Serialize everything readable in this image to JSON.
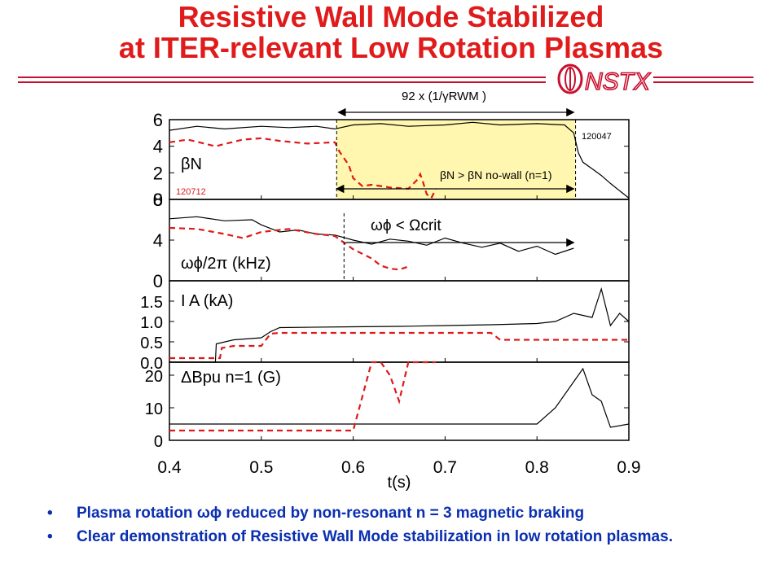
{
  "title": {
    "line1": "Resistive Wall Mode Stabilized",
    "line2": "at ITER-relevant Low Rotation Plasmas"
  },
  "logo": {
    "text": "NSTX"
  },
  "colors": {
    "title": "#e01b1b",
    "bullets": "#0b2fb0",
    "shot_120047": "#000000",
    "shot_120712": "#dd1a1a",
    "highlight": "#fff7b0",
    "logo": "#c8102e"
  },
  "bullets": [
    "Plasma rotation ωϕ reduced by non-resonant n = 3 magnetic braking",
    "Clear demonstration of Resistive Wall Mode stabilization in low rotation plasmas."
  ],
  "chart_data": {
    "type": "line",
    "xlabel": "t(s)",
    "xlim": [
      0.4,
      0.9
    ],
    "xticks": [
      "0.4",
      "0.5",
      "0.6",
      "0.7",
      "0.8",
      "0.9"
    ],
    "shots": [
      "120047",
      "120712"
    ],
    "annotations": {
      "top_arrow": "92 x (1/γRWM )",
      "top_arrow_t": [
        0.582,
        0.842
      ],
      "beta_condition": "βN > βN no-wall (n=1)",
      "beta_arrow_t": [
        0.58,
        0.842
      ],
      "rotation_condition": "ωϕ < Ωcrit",
      "rotation_arrow_t": [
        0.59,
        0.842
      ],
      "shaded_t": [
        0.582,
        0.842
      ]
    },
    "panels": [
      {
        "label": "βN",
        "ylim": [
          0,
          6
        ],
        "yticks": [
          "0",
          "2",
          "4",
          "6"
        ],
        "series": [
          {
            "name": "120047",
            "x": [
              0.4,
              0.43,
              0.46,
              0.5,
              0.53,
              0.56,
              0.58,
              0.6,
              0.63,
              0.66,
              0.7,
              0.73,
              0.76,
              0.8,
              0.83,
              0.84,
              0.845,
              0.85,
              0.86,
              0.87,
              0.88,
              0.9
            ],
            "y": [
              5.2,
              5.5,
              5.3,
              5.5,
              5.4,
              5.5,
              5.3,
              5.6,
              5.7,
              5.5,
              5.6,
              5.8,
              5.6,
              5.7,
              5.6,
              5.0,
              3.5,
              2.8,
              2.3,
              1.8,
              1.2,
              0.1
            ]
          },
          {
            "name": "120712",
            "x": [
              0.4,
              0.42,
              0.45,
              0.48,
              0.5,
              0.52,
              0.55,
              0.58,
              0.585,
              0.595,
              0.6,
              0.61,
              0.62,
              0.64,
              0.66,
              0.67,
              0.673,
              0.676,
              0.68,
              0.685,
              0.69
            ],
            "y": [
              4.3,
              4.5,
              4.0,
              4.5,
              4.6,
              4.4,
              4.2,
              4.3,
              3.6,
              2.6,
              1.6,
              1.0,
              1.1,
              0.9,
              0.8,
              1.5,
              1.9,
              1.3,
              0.4,
              0.1,
              0.8
            ]
          }
        ]
      },
      {
        "label": "ωϕ/2π (kHz)",
        "ylim": [
          0,
          8
        ],
        "yticks": [
          "0",
          "4",
          "8"
        ],
        "series": [
          {
            "name": "120047",
            "x": [
              0.4,
              0.43,
              0.46,
              0.49,
              0.5,
              0.52,
              0.54,
              0.56,
              0.58,
              0.6,
              0.62,
              0.64,
              0.66,
              0.68,
              0.7,
              0.72,
              0.74,
              0.76,
              0.78,
              0.8,
              0.82,
              0.84
            ],
            "y": [
              6.1,
              6.3,
              5.9,
              6.0,
              5.5,
              4.8,
              5.0,
              4.6,
              4.5,
              4.0,
              3.6,
              4.1,
              3.9,
              3.5,
              4.2,
              3.7,
              3.3,
              3.7,
              2.9,
              3.4,
              2.6,
              3.2
            ]
          },
          {
            "name": "120712",
            "x": [
              0.4,
              0.43,
              0.46,
              0.48,
              0.5,
              0.53,
              0.56,
              0.58,
              0.6,
              0.62,
              0.63,
              0.64,
              0.65,
              0.66
            ],
            "y": [
              5.2,
              5.1,
              4.6,
              4.2,
              4.8,
              5.1,
              4.6,
              4.4,
              3.1,
              2.2,
              1.5,
              1.2,
              1.1,
              1.4
            ]
          }
        ]
      },
      {
        "label": "I A (kA)",
        "ylim": [
          0,
          2
        ],
        "yticks": [
          "0.0",
          "0.5",
          "1.0",
          "1.5"
        ],
        "series": [
          {
            "name": "120047",
            "x": [
              0.4,
              0.45,
              0.451,
              0.47,
              0.5,
              0.51,
              0.52,
              0.6,
              0.65,
              0.7,
              0.75,
              0.8,
              0.82,
              0.84,
              0.86,
              0.87,
              0.88,
              0.89,
              0.9
            ],
            "y": [
              0.0,
              0.0,
              0.45,
              0.55,
              0.6,
              0.75,
              0.85,
              0.87,
              0.88,
              0.9,
              0.92,
              0.95,
              1.0,
              1.2,
              1.1,
              1.8,
              0.9,
              1.2,
              1.0
            ]
          },
          {
            "name": "120712",
            "x": [
              0.4,
              0.455,
              0.457,
              0.47,
              0.5,
              0.51,
              0.52,
              0.7,
              0.75,
              0.76,
              0.8,
              0.9
            ],
            "y": [
              0.1,
              0.1,
              0.35,
              0.4,
              0.4,
              0.7,
              0.72,
              0.72,
              0.72,
              0.55,
              0.55,
              0.55
            ]
          }
        ]
      },
      {
        "label": "ΔBpu n=1 (G)",
        "ylim": [
          0,
          24
        ],
        "yticks": [
          "0",
          "10",
          "20"
        ],
        "series": [
          {
            "name": "120047",
            "x": [
              0.4,
              0.5,
              0.6,
              0.7,
              0.8,
              0.82,
              0.84,
              0.85,
              0.86,
              0.87,
              0.88,
              0.9
            ],
            "y": [
              5,
              5,
              5,
              5,
              5,
              10,
              18,
              22,
              14,
              12,
              4,
              5
            ]
          },
          {
            "name": "120712",
            "x": [
              0.4,
              0.5,
              0.6,
              0.62,
              0.63,
              0.64,
              0.65,
              0.66,
              0.67,
              0.68,
              0.69
            ],
            "y": [
              3,
              3,
              3,
              24,
              24,
              20,
              12,
              24,
              24,
              24,
              24
            ]
          }
        ]
      }
    ]
  }
}
